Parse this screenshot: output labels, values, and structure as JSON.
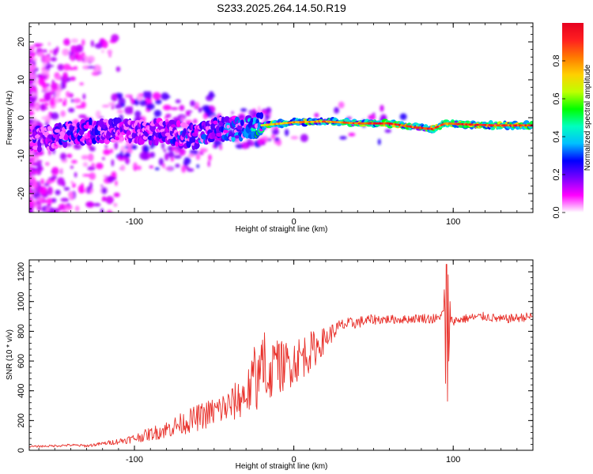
{
  "title": "S233.2025.264.14.50.R19",
  "chart_data": [
    {
      "type": "heatmap",
      "panel": "top",
      "xlabel": "Height of straight line (km)",
      "ylabel": "Frequency (Hz)",
      "xlim": [
        -166,
        150
      ],
      "ylim": [
        -25,
        25
      ],
      "xticks": [
        -100,
        0,
        100
      ],
      "yticks": [
        -20,
        -10,
        0,
        10,
        20
      ],
      "colorbar": {
        "label": "Normalized spectral amplitude",
        "range": [
          0,
          1
        ],
        "ticks": [
          0.0,
          0.2,
          0.4,
          0.6,
          0.8
        ],
        "tick_labels": [
          "0.0",
          "0.2",
          "0.4",
          "0.6",
          "0.8"
        ],
        "colors": [
          "#ffffff",
          "#ff00ff",
          "#7a00ff",
          "#0000ff",
          "#00bfff",
          "#00ffbf",
          "#00ff00",
          "#bfff00",
          "#ffd000",
          "#ff7a00",
          "#ff2020",
          "#e60020"
        ]
      },
      "ridge": [
        {
          "x": -155,
          "f": -5.5,
          "amp": 0.4
        },
        {
          "x": -140,
          "f": -4.0,
          "amp": 0.5
        },
        {
          "x": -120,
          "f": -3.5,
          "amp": 0.45
        },
        {
          "x": -100,
          "f": -3.5,
          "amp": 0.4
        },
        {
          "x": -80,
          "f": -3.5,
          "amp": 0.45
        },
        {
          "x": -65,
          "f": -5.0,
          "amp": 0.5
        },
        {
          "x": -45,
          "f": -3.0,
          "amp": 0.5
        },
        {
          "x": -30,
          "f": -2.5,
          "amp": 0.6
        },
        {
          "x": -20,
          "f": -2.0,
          "amp": 0.75
        },
        {
          "x": 0,
          "f": -1.2,
          "amp": 0.8
        },
        {
          "x": 20,
          "f": -1.0,
          "amp": 0.85
        },
        {
          "x": 40,
          "f": -1.5,
          "amp": 0.9
        },
        {
          "x": 60,
          "f": -1.5,
          "amp": 0.95
        },
        {
          "x": 75,
          "f": -2.5,
          "amp": 0.9
        },
        {
          "x": 87,
          "f": -3.0,
          "amp": 0.95
        },
        {
          "x": 95,
          "f": -1.5,
          "amp": 0.85
        },
        {
          "x": 110,
          "f": -1.8,
          "amp": 0.95
        },
        {
          "x": 125,
          "f": -2.0,
          "amp": 0.9
        },
        {
          "x": 150,
          "f": -2.0,
          "amp": 0.95
        }
      ]
    },
    {
      "type": "line",
      "panel": "bottom",
      "xlabel": "Height of straight line (km)",
      "ylabel": "SNR (10 * v/v)",
      "xlim": [
        -166,
        150
      ],
      "ylim": [
        0,
        1280
      ],
      "xticks": [
        -100,
        0,
        100
      ],
      "yticks": [
        0,
        200,
        400,
        600,
        800,
        1000,
        1200
      ],
      "color": "#e8302a",
      "series": [
        {
          "name": "SNR",
          "x": [
            -166,
            -150,
            -140,
            -130,
            -120,
            -110,
            -100,
            -90,
            -80,
            -70,
            -60,
            -50,
            -40,
            -30,
            -25,
            -20,
            -15,
            -10,
            -5,
            0,
            5,
            10,
            15,
            20,
            25,
            30,
            40,
            50,
            60,
            70,
            80,
            90,
            95,
            96,
            97,
            98,
            100,
            110,
            120,
            130,
            140,
            150
          ],
          "y": [
            25,
            30,
            35,
            30,
            45,
            60,
            80,
            110,
            140,
            180,
            220,
            260,
            300,
            380,
            440,
            500,
            540,
            560,
            570,
            600,
            630,
            660,
            700,
            750,
            800,
            840,
            860,
            880,
            880,
            880,
            890,
            880,
            950,
            1200,
            500,
            880,
            870,
            890,
            900,
            880,
            890,
            900
          ],
          "noise": [
            6,
            8,
            8,
            10,
            12,
            20,
            30,
            45,
            60,
            75,
            90,
            100,
            120,
            150,
            200,
            230,
            220,
            180,
            170,
            160,
            150,
            140,
            110,
            80,
            60,
            45,
            40,
            35,
            30,
            28,
            30,
            40,
            0,
            0,
            0,
            30,
            30,
            30,
            30,
            30,
            30,
            30
          ]
        }
      ]
    }
  ]
}
